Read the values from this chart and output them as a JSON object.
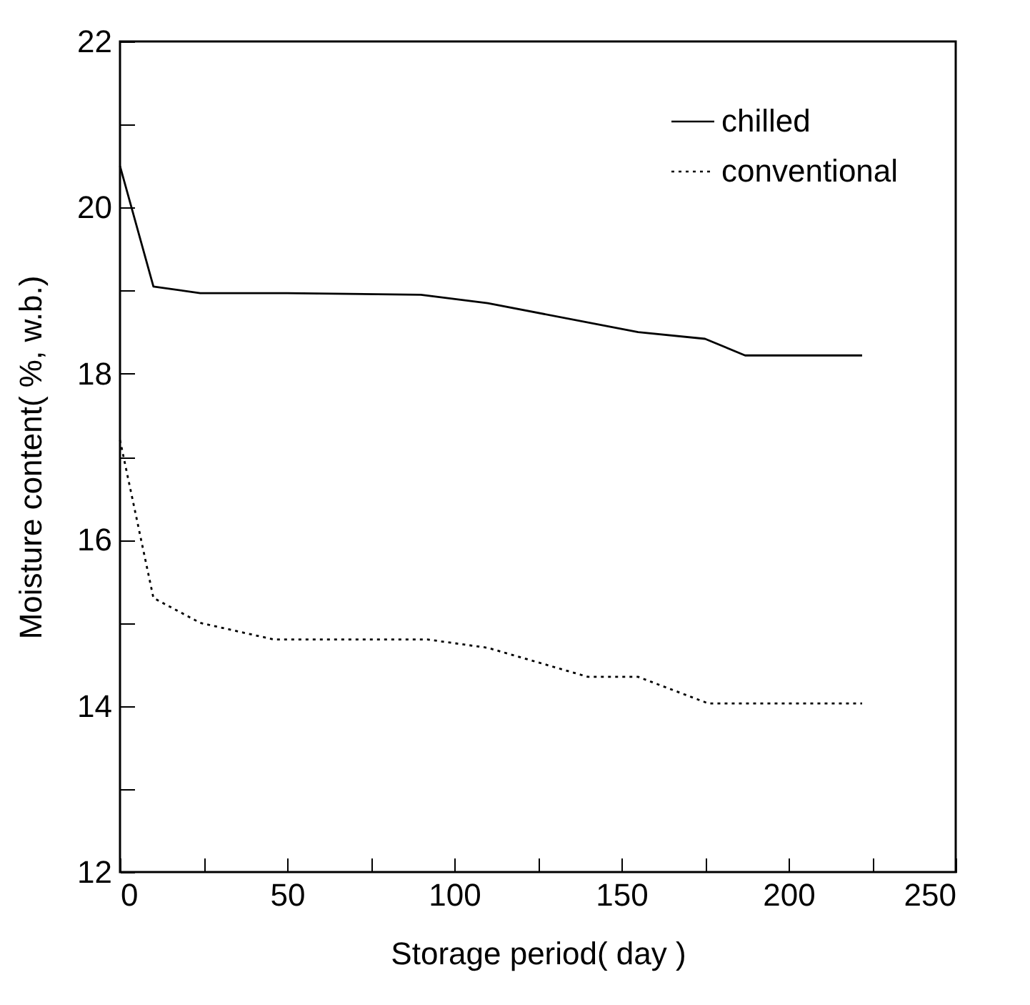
{
  "chart_data": {
    "type": "line",
    "xlabel": "Storage period( day )",
    "ylabel": "Moisture content( %, w.b.)",
    "xlim": [
      0,
      250
    ],
    "ylim": [
      12,
      22
    ],
    "xticks": [
      0,
      {
        "value": 25,
        "label": null
      },
      50,
      {
        "value": 75,
        "label": null
      },
      100,
      {
        "value": 125,
        "label": null
      },
      150,
      {
        "value": 175,
        "label": null
      },
      200,
      {
        "value": 225,
        "label": null
      },
      250
    ],
    "yticks": [
      12,
      {
        "value": 13,
        "label": null
      },
      14,
      {
        "value": 15,
        "label": null
      },
      16,
      {
        "value": 17,
        "label": null
      },
      18,
      {
        "value": 19,
        "label": null
      },
      20,
      {
        "value": 21,
        "label": null
      },
      22
    ],
    "grid": false,
    "legend": "top right",
    "marker": "none",
    "series": [
      {
        "name": "chilled",
        "color": "#000000",
        "line_style": "solid",
        "x": [
          0,
          10,
          24,
          50,
          90,
          110,
          155,
          175,
          187,
          222
        ],
        "values": [
          20.5,
          19.05,
          18.97,
          18.97,
          18.95,
          18.85,
          18.5,
          18.42,
          18.22,
          18.22
        ]
      },
      {
        "name": "conventional",
        "color": "#000000",
        "line_style": "dotted",
        "x": [
          0,
          10,
          24,
          46,
          92,
          110,
          140,
          155,
          176,
          222
        ],
        "values": [
          17.2,
          15.3,
          15.0,
          14.8,
          14.8,
          14.7,
          14.35,
          14.35,
          14.03,
          14.03
        ]
      }
    ]
  }
}
